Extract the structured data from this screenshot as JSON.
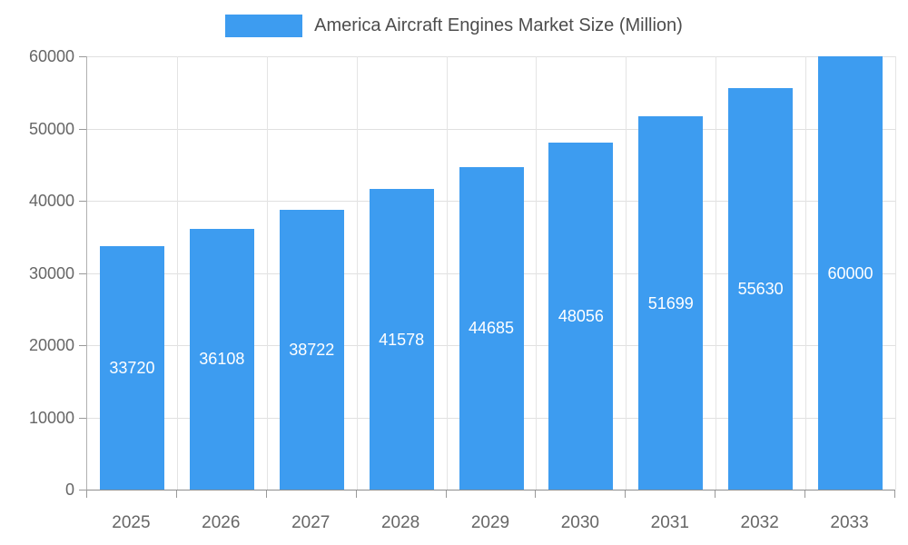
{
  "legend": {
    "label": "America Aircraft Engines Market Size (Million)"
  },
  "chart_data": {
    "type": "bar",
    "title": "America Aircraft Engines Market Size (Million)",
    "categories": [
      "2025",
      "2026",
      "2027",
      "2028",
      "2029",
      "2030",
      "2031",
      "2032",
      "2033"
    ],
    "values": [
      33720,
      36108,
      38722,
      41578,
      44685,
      48056,
      51699,
      55630,
      60000
    ],
    "xlabel": "",
    "ylabel": "",
    "ylim": [
      0,
      60000
    ],
    "yticks": [
      0,
      10000,
      20000,
      30000,
      40000,
      50000,
      60000
    ],
    "grid": true,
    "legend_position": "top-center",
    "bar_color": "#3D9CF0",
    "value_label_color": "#FFFFFF",
    "axis_text_color": "#666666",
    "grid_color": "#E0E0E0",
    "axis_line_color": "#999999",
    "background": "#FFFFFF"
  }
}
